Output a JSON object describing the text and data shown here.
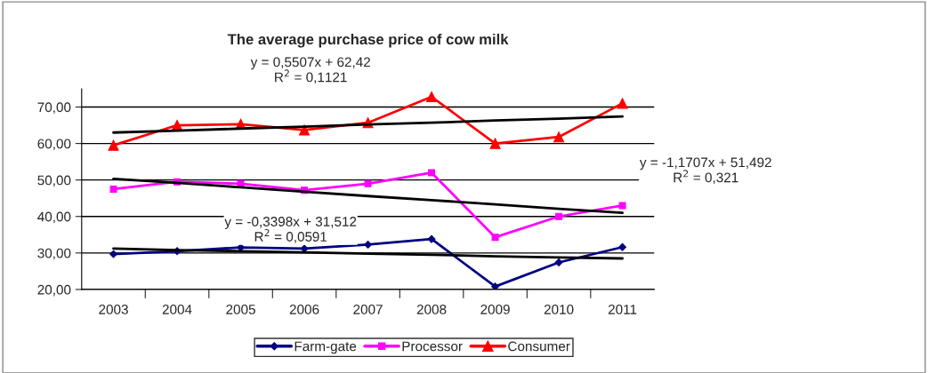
{
  "chart_data": {
    "type": "line",
    "title": "The average purchase price of cow milk",
    "categories": [
      "2003",
      "2004",
      "2005",
      "2006",
      "2007",
      "2008",
      "2009",
      "2010",
      "2011"
    ],
    "series": [
      {
        "name": "Farm-gate",
        "color": "#000080",
        "marker": "diamond",
        "values": [
          29.7,
          30.5,
          31.5,
          31.2,
          32.3,
          33.8,
          20.8,
          27.4,
          31.6
        ]
      },
      {
        "name": "Processor",
        "color": "#ff00ff",
        "marker": "square",
        "values": [
          47.5,
          49.5,
          49.0,
          47.2,
          49.0,
          52.0,
          34.3,
          40.0,
          43.0
        ]
      },
      {
        "name": "Consumer",
        "color": "#ff0000",
        "marker": "triangle",
        "values": [
          59.5,
          65.0,
          65.3,
          63.7,
          65.7,
          72.8,
          60.0,
          61.8,
          71.0
        ]
      },
      {
        "color": "#000000",
        "marker": "none",
        "values": [
          31.2,
          30.8,
          30.5,
          30.2,
          29.8,
          29.5,
          29.1,
          28.8,
          28.5
        ]
      },
      {
        "color": "#000000",
        "marker": "none",
        "values": [
          50.3,
          49.2,
          48.0,
          46.8,
          45.6,
          44.5,
          43.3,
          42.1,
          41.0
        ]
      },
      {
        "color": "#000000",
        "marker": "none",
        "values": [
          63.0,
          63.5,
          64.1,
          64.6,
          65.2,
          65.7,
          66.3,
          66.8,
          67.4
        ]
      }
    ],
    "ylim": [
      20,
      75
    ],
    "yticks": [
      {
        "value": 20,
        "label": "20,00"
      },
      {
        "value": 30,
        "label": "30,00"
      },
      {
        "value": 40,
        "label": "40,00"
      },
      {
        "value": 50,
        "label": "50,00"
      },
      {
        "value": 60,
        "label": "60,00"
      },
      {
        "value": 70,
        "label": "70,00"
      }
    ],
    "grid": "y",
    "legend": "bottom",
    "annotations": [
      "y = 0,5507x + 62,42\nR$^{2}$ = 0,1121",
      "y = -1,1707x + 51,492\nR$^{2}$ = 0,321",
      "y = -0,3398x + 31,512\nR$^{2}$ = 0,0591"
    ]
  }
}
